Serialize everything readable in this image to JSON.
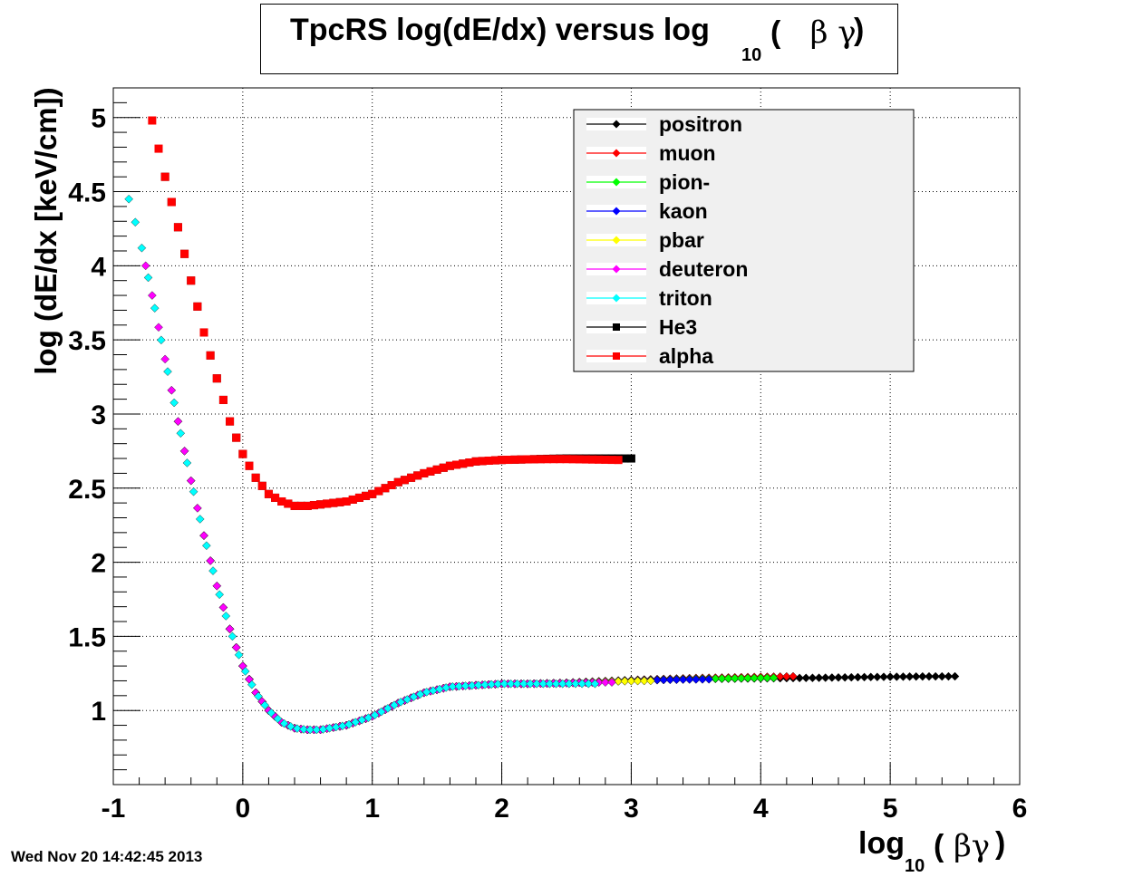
{
  "title": {
    "main": "TpcRS log(dE/dx) versus log",
    "sub": "10",
    "open": "(",
    "beta_gamma": "β γ",
    "close": ")"
  },
  "timestamp": "Wed Nov 20 14:42:45 2013",
  "chart_data": {
    "type": "scatter",
    "xlabel": {
      "main": "log",
      "sub": "10",
      "paren_open": "(",
      "symbol": "βγ",
      "paren_close": ")"
    },
    "ylabel": "log (dE/dx [keV/cm])",
    "xlim": [
      -1,
      6
    ],
    "ylim": [
      0.5,
      5.2
    ],
    "x_ticks": [
      "-1",
      "0",
      "1",
      "2",
      "3",
      "4",
      "5",
      "6"
    ],
    "y_ticks": [
      "1",
      "1.5",
      "2",
      "2.5",
      "3",
      "3.5",
      "4",
      "4.5",
      "5"
    ],
    "grid": true,
    "legend_position": "top-right",
    "series": [
      {
        "name": "positron",
        "color": "#000000",
        "marker": "diamond",
        "x_range": [
          0.0,
          5.5
        ],
        "curve": "light",
        "end_y": 1.23
      },
      {
        "name": "muon",
        "color": "#ff0000",
        "marker": "diamond",
        "x_range": [
          -0.05,
          4.25
        ],
        "curve": "light",
        "end_y": 1.23
      },
      {
        "name": "pion-",
        "color": "#00ff00",
        "marker": "diamond",
        "x_range": [
          -0.1,
          4.1
        ],
        "curve": "light",
        "end_y": 1.22
      },
      {
        "name": "kaon",
        "color": "#0000ff",
        "marker": "diamond",
        "x_range": [
          -0.3,
          3.6
        ],
        "curve": "light",
        "end_y": 1.21
      },
      {
        "name": "pbar",
        "color": "#ffff00",
        "marker": "diamond",
        "x_range": [
          -0.55,
          3.15
        ],
        "curve": "light",
        "end_y": 1.2
      },
      {
        "name": "deuteron",
        "color": "#ff00ff",
        "marker": "diamond",
        "x_range": [
          -0.75,
          2.85
        ],
        "curve": "light",
        "end_y": 1.19
      },
      {
        "name": "triton",
        "color": "#00ffff",
        "marker": "diamond",
        "x_range": [
          -0.88,
          2.75
        ],
        "curve": "light",
        "end_y": 1.18
      },
      {
        "name": "He3",
        "color": "#000000",
        "marker": "square",
        "x_range": [
          -0.6,
          3.0
        ],
        "curve": "heavy",
        "end_y": 2.7
      },
      {
        "name": "alpha",
        "color": "#ff0000",
        "marker": "square",
        "x_range": [
          -0.7,
          2.9
        ],
        "curve": "heavy",
        "end_y": 2.69
      }
    ],
    "curves": {
      "light": {
        "x": [
          -0.88,
          -0.8,
          -0.7,
          -0.6,
          -0.5,
          -0.4,
          -0.3,
          -0.2,
          -0.1,
          0.0,
          0.1,
          0.2,
          0.3,
          0.4,
          0.5,
          0.6,
          0.8,
          1.0,
          1.2,
          1.4,
          1.6,
          1.8,
          2.0,
          2.5,
          3.0,
          3.5,
          4.0,
          4.5,
          5.0,
          5.5
        ],
        "y": [
          4.45,
          4.2,
          3.8,
          3.37,
          2.95,
          2.55,
          2.18,
          1.84,
          1.55,
          1.3,
          1.12,
          1.0,
          0.92,
          0.88,
          0.87,
          0.87,
          0.9,
          0.96,
          1.05,
          1.12,
          1.16,
          1.17,
          1.18,
          1.18,
          1.19,
          1.2,
          1.2,
          1.2,
          1.21,
          1.23
        ]
      },
      "heavy": {
        "x": [
          -0.7,
          -0.6,
          -0.5,
          -0.4,
          -0.3,
          -0.2,
          -0.1,
          0.0,
          0.1,
          0.2,
          0.3,
          0.4,
          0.5,
          0.6,
          0.8,
          1.0,
          1.2,
          1.4,
          1.6,
          1.8,
          2.0,
          2.5,
          3.0
        ],
        "y": [
          4.98,
          4.6,
          4.26,
          3.9,
          3.55,
          3.24,
          2.95,
          2.73,
          2.57,
          2.46,
          2.41,
          2.38,
          2.38,
          2.39,
          2.41,
          2.46,
          2.54,
          2.6,
          2.65,
          2.68,
          2.69,
          2.7,
          2.7
        ]
      }
    }
  }
}
